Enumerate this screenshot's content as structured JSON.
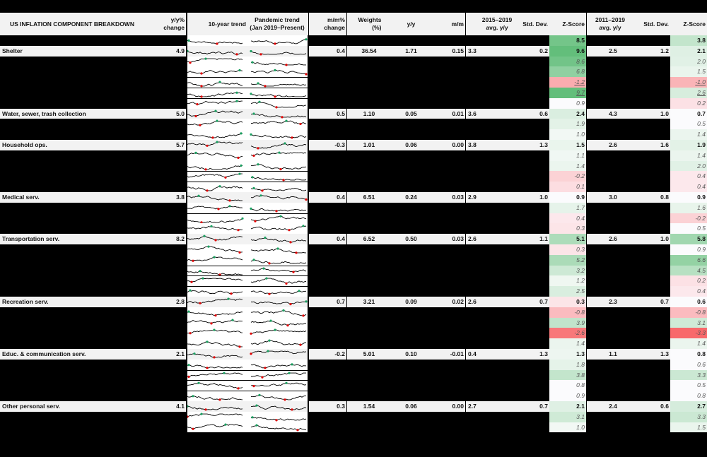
{
  "header": {
    "title": "US INFLATION COMPONENT BREAKDOWN",
    "yy_change": "y/y%\nchange",
    "trend_10y": "10-year trend",
    "trend_pandemic": "Pandemic trend\n(Jan 2019–Present)",
    "mm_change": "m/m%\nchange",
    "weights": "Weights\n(%)",
    "yy": "y/y",
    "mm": "m/m",
    "avg_2015_2019": "2015–2019\navg. y/y",
    "std_dev_1": "Std. Dev.",
    "zscore_1": "Z-Score",
    "avg_2011_2019": "2011–2019\navg. y/y",
    "std_dev_2": "Std. Dev.",
    "zscore_2": "Z-Score"
  },
  "colors": {
    "header_bg": "#f2f2f2",
    "main_row_bg": "#f2f2f2",
    "positive_strong": "#63be7b",
    "negative_strong": "#f8696b",
    "neutral": "#fcfcff",
    "sparkline_min": "#e00000",
    "sparkline_max": "#1aa060"
  },
  "rows": [
    {
      "main": false,
      "label": "",
      "z1": "8.5",
      "z2": "3.8",
      "z1bold": true,
      "z2bold": true
    },
    {
      "main": true,
      "label": "Shelter",
      "yy": "4.9",
      "mm": "0.4",
      "weight": "36.54",
      "cyy": "1.71",
      "cmm": "0.15",
      "avg1": "3.3",
      "sd1": "0.2",
      "z1": "9.6",
      "avg2": "2.5",
      "sd2": "1.2",
      "z2": "2.1"
    },
    {
      "main": false,
      "z1": "8.6",
      "z2": "2.0"
    },
    {
      "main": false,
      "z1": "6.8",
      "z2": "1.5"
    },
    {
      "main": false,
      "z1": "-1.2",
      "z2": "-1.0",
      "underline": true,
      "sep": true
    },
    {
      "main": false,
      "z1": "9.7",
      "z2": "2.6",
      "underline": true,
      "sep": true
    },
    {
      "main": false,
      "z1": "0.9",
      "z2": "0.2",
      "sep": true
    },
    {
      "main": true,
      "label": "Water, sewer, trash collection",
      "yy": "5.0",
      "mm": "0.5",
      "weight": "1.10",
      "cyy": "0.05",
      "cmm": "0.01",
      "avg1": "3.6",
      "sd1": "0.6",
      "z1": "2.4",
      "avg2": "4.3",
      "sd2": "1.0",
      "z2": "0.7"
    },
    {
      "main": false,
      "z1": "1.9",
      "z2": "0.5"
    },
    {
      "main": false,
      "z1": "1.0",
      "z2": "1.4"
    },
    {
      "main": true,
      "label": "Household ops.",
      "yy": "5.7",
      "mm": "-0.3",
      "weight": "1.01",
      "cyy": "0.06",
      "cmm": "0.00",
      "avg1": "3.8",
      "sd1": "1.3",
      "z1": "1.5",
      "avg2": "2.6",
      "sd2": "1.6",
      "z2": "1.9"
    },
    {
      "main": false,
      "z1": "1.1",
      "z2": "1.4"
    },
    {
      "main": false,
      "z1": "1.4",
      "z2": "2.0"
    },
    {
      "main": false,
      "z1": "-0.2",
      "z2": "0.4",
      "sep": true
    },
    {
      "main": false,
      "z1": "0.1",
      "z2": "0.4",
      "sep": true
    },
    {
      "main": true,
      "label": "Medical serv.",
      "yy": "3.8",
      "mm": "0.4",
      "weight": "6.51",
      "cyy": "0.24",
      "cmm": "0.03",
      "avg1": "2.9",
      "sd1": "1.0",
      "z1": "0.9",
      "avg2": "3.0",
      "sd2": "0.8",
      "z2": "0.9"
    },
    {
      "main": false,
      "z1": "1.7",
      "z2": "1.6"
    },
    {
      "main": false,
      "z1": "0.4",
      "z2": "-0.2",
      "sep": true
    },
    {
      "main": false,
      "z1": "0.3",
      "z2": "0.5"
    },
    {
      "main": true,
      "label": "Transportation serv.",
      "yy": "8.2",
      "mm": "0.4",
      "weight": "6.52",
      "cyy": "0.50",
      "cmm": "0.03",
      "avg1": "2.6",
      "sd1": "1.1",
      "z1": "5.1",
      "avg2": "2.6",
      "sd2": "1.0",
      "z2": "5.8"
    },
    {
      "main": false,
      "z1": "0.3",
      "z2": "0.9"
    },
    {
      "main": false,
      "z1": "5.2",
      "z2": "6.6"
    },
    {
      "main": false,
      "z1": "3.2",
      "z2": "4.5",
      "sep": true
    },
    {
      "main": false,
      "z1": "1.2",
      "z2": "0.2",
      "sep": true
    },
    {
      "main": false,
      "z1": "2.5",
      "z2": "0.4",
      "sep": true
    },
    {
      "main": true,
      "label": "Recreation serv.",
      "yy": "2.8",
      "mm": "0.7",
      "weight": "3.21",
      "cyy": "0.09",
      "cmm": "0.02",
      "avg1": "2.6",
      "sd1": "0.7",
      "z1": "0.3",
      "avg2": "2.3",
      "sd2": "0.7",
      "z2": "0.6"
    },
    {
      "main": false,
      "z1": "-0.8",
      "z2": "-0.8"
    },
    {
      "main": false,
      "z1": "3.9",
      "z2": "3.1"
    },
    {
      "main": false,
      "z1": "-2.6",
      "z2": "-3.3"
    },
    {
      "main": false,
      "z1": "1.4",
      "z2": "1.4"
    },
    {
      "main": true,
      "label": "Educ. & communication serv.",
      "yy": "2.1",
      "mm": "-0.2",
      "weight": "5.01",
      "cyy": "0.10",
      "cmm": "-0.01",
      "avg1": "0.4",
      "sd1": "1.3",
      "z1": "1.3",
      "avg2": "1.1",
      "sd2": "1.3",
      "z2": "0.8"
    },
    {
      "main": false,
      "z1": "1.8",
      "z2": "0.6"
    },
    {
      "main": false,
      "z1": "3.8",
      "z2": "3.3",
      "sep": true
    },
    {
      "main": false,
      "z1": "0.8",
      "z2": "0.5",
      "sep": true
    },
    {
      "main": false,
      "z1": "0.9",
      "z2": "0.8",
      "sep": true
    },
    {
      "main": true,
      "label": "Other personal serv.",
      "yy": "4.1",
      "mm": "0.3",
      "weight": "1.54",
      "cyy": "0.06",
      "cmm": "0.00",
      "avg1": "2.7",
      "sd1": "0.7",
      "z1": "2.1",
      "avg2": "2.4",
      "sd2": "0.6",
      "z2": "2.7"
    },
    {
      "main": false,
      "z1": "3.1",
      "z2": "3.3"
    },
    {
      "main": false,
      "z1": "1.0",
      "z2": "1.5"
    }
  ]
}
